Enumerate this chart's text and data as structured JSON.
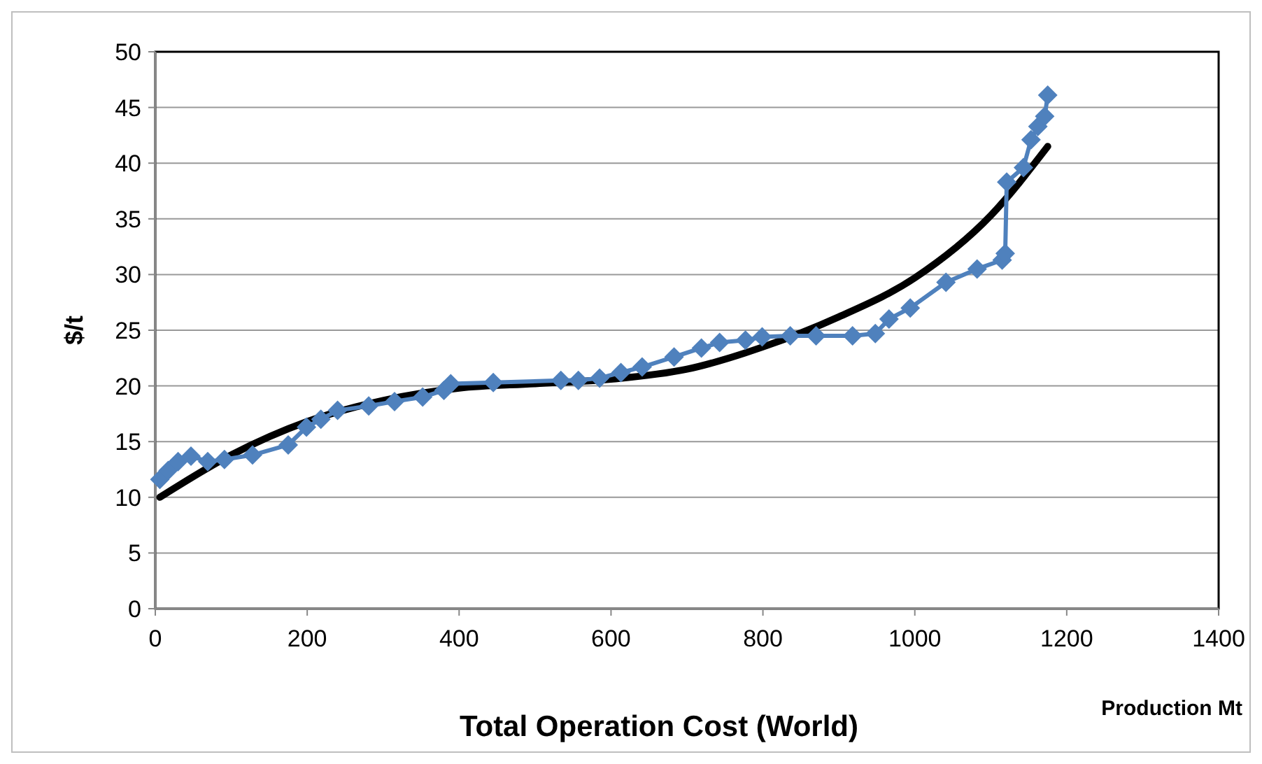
{
  "chart_data": {
    "type": "line",
    "title": "Total Operation Cost (World)",
    "xlabel": "Production Mt",
    "ylabel": "$/t",
    "xlim": [
      0,
      1400
    ],
    "xticks": [
      0,
      200,
      400,
      600,
      800,
      1000,
      1200,
      1400
    ],
    "ylim": [
      0,
      50
    ],
    "yticks": [
      0,
      5,
      10,
      15,
      20,
      25,
      30,
      35,
      40,
      45,
      50
    ],
    "grid": "y",
    "series": [
      {
        "color": "#4f81bd",
        "marker": "diamond",
        "x": [
          6,
          17,
          30,
          47,
          69,
          91,
          128,
          175,
          199,
          218,
          240,
          281,
          315,
          352,
          380,
          389,
          445,
          534,
          557,
          585,
          613,
          641,
          683,
          719,
          743,
          777,
          799,
          836,
          870,
          918,
          948,
          966,
          994,
          1041,
          1082,
          1115,
          1119,
          1121,
          1143,
          1153,
          1162,
          1171,
          1175
        ],
        "values": [
          11.6,
          12.4,
          13.2,
          13.7,
          13.2,
          13.4,
          13.8,
          14.7,
          16.3,
          17.0,
          17.8,
          18.2,
          18.6,
          19.0,
          19.6,
          20.2,
          20.3,
          20.5,
          20.5,
          20.7,
          21.2,
          21.7,
          22.6,
          23.4,
          23.9,
          24.1,
          24.4,
          24.5,
          24.5,
          24.5,
          24.7,
          26.0,
          27.0,
          29.3,
          30.5,
          31.3,
          31.9,
          38.3,
          39.6,
          42.1,
          43.3,
          44.2,
          46.1
        ]
      },
      {
        "color": "#000000",
        "marker": "none",
        "x": [
          6,
          100,
          200,
          300,
          400,
          500,
          600,
          700,
          800,
          900,
          1000,
          1100,
          1175
        ],
        "values": [
          10,
          13.8,
          16.8,
          18.7,
          19.8,
          20.2,
          20.6,
          21.5,
          23.5,
          26.2,
          29.7,
          35.3,
          41.5
        ]
      }
    ]
  }
}
